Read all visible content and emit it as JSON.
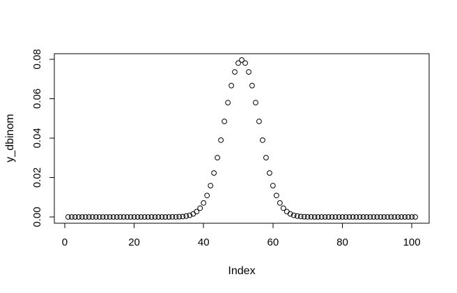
{
  "chart_data": {
    "type": "scatter",
    "title": "",
    "xlabel": "Index",
    "ylabel": "y_dbinom",
    "marker": "open-circle",
    "marker_color": "#000000",
    "axis_color": "#000000",
    "background_color": "#ffffff",
    "grid": false,
    "legend": null,
    "x_ticks": [
      0,
      20,
      40,
      60,
      80,
      100
    ],
    "y_ticks": [
      0,
      0.02,
      0.04,
      0.06,
      0.08
    ],
    "y_tick_labels": [
      "0.00",
      "0.02",
      "0.04",
      "0.06",
      "0.08"
    ],
    "xlim": [
      -3,
      105
    ],
    "ylim": [
      -0.00318,
      0.08277
    ],
    "x": [
      1,
      2,
      3,
      4,
      5,
      6,
      7,
      8,
      9,
      10,
      11,
      12,
      13,
      14,
      15,
      16,
      17,
      18,
      19,
      20,
      21,
      22,
      23,
      24,
      25,
      26,
      27,
      28,
      29,
      30,
      31,
      32,
      33,
      34,
      35,
      36,
      37,
      38,
      39,
      40,
      41,
      42,
      43,
      44,
      45,
      46,
      47,
      48,
      49,
      50,
      51,
      52,
      53,
      54,
      55,
      56,
      57,
      58,
      59,
      60,
      61,
      62,
      63,
      64,
      65,
      66,
      67,
      68,
      69,
      70,
      71,
      72,
      73,
      74,
      75,
      76,
      77,
      78,
      79,
      80,
      81,
      82,
      83,
      84,
      85,
      86,
      87,
      88,
      89,
      90,
      91,
      92,
      93,
      94,
      95,
      96,
      97,
      98,
      99,
      100,
      101
    ],
    "y": [
      0,
      0,
      0,
      0,
      0,
      0,
      0,
      0,
      0,
      0,
      0,
      0,
      0,
      0,
      0,
      0,
      0,
      0,
      0,
      0,
      0,
      0,
      0,
      0,
      1e-07,
      2e-07,
      6e-07,
      1.5e-06,
      3.9e-06,
      9.8e-06,
      2.32e-05,
      5.23e-05,
      0.0001128,
      0.0002325,
      0.0004581,
      0.0008639,
      0.0015599,
      0.0026981,
      0.0044732,
      0.0071112,
      0.0108446,
      0.0158702,
      0.0222938,
      0.0300707,
      0.0389526,
      0.0484743,
      0.0579584,
      0.0665905,
      0.073527,
      0.0780286,
      0.0795892,
      0.0780286,
      0.073527,
      0.0665905,
      0.0579584,
      0.0484743,
      0.0389526,
      0.0300707,
      0.0222938,
      0.0158702,
      0.0108446,
      0.0071112,
      0.0044732,
      0.0026981,
      0.0015599,
      0.0008639,
      0.0004581,
      0.0002325,
      0.0001128,
      5.23e-05,
      2.32e-05,
      9.8e-06,
      3.9e-06,
      1.5e-06,
      6e-07,
      2e-07,
      1e-07,
      0,
      0,
      0,
      0,
      0,
      0,
      0,
      0,
      0,
      0,
      0,
      0,
      0,
      0,
      0,
      0,
      0,
      0,
      0,
      0,
      0,
      0,
      0,
      0
    ]
  }
}
